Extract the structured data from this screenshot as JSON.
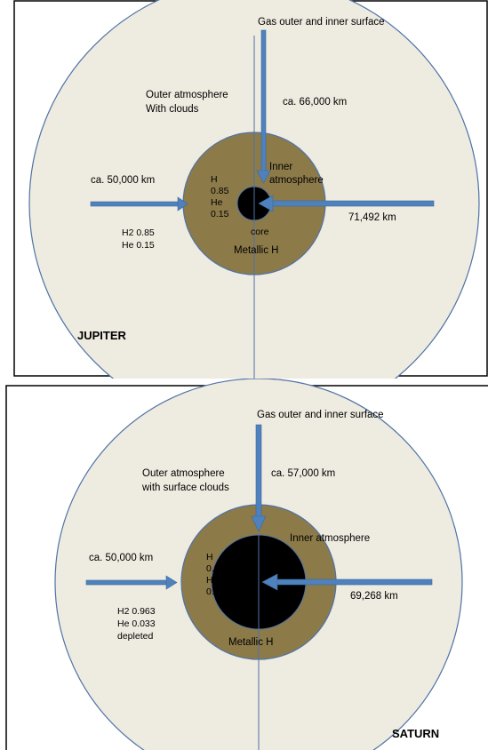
{
  "jupiter": {
    "title": "JUPITER",
    "top_label": "Gas outer and inner surface",
    "outer_label_line1": "Outer atmosphere",
    "outer_label_line2": "With clouds",
    "depth_top": "ca. 66,000 km",
    "depth_left": "ca. 50,000 km",
    "radius": "71,492 km",
    "inner_label_line1": "Inner",
    "inner_label_line2": "atmosphere",
    "metallic_label": "Metallic H",
    "core_label": "core",
    "inner_comp": [
      "H",
      "0.85",
      "He",
      "0.15"
    ],
    "outer_comp": [
      "H2  0.85",
      "He  0.15"
    ],
    "colors": {
      "outer": "#eeebe0",
      "mantle": "#8c7a49",
      "core": "#000000",
      "stroke": "#4f73a6",
      "arrow": "#4f81bd"
    }
  },
  "saturn": {
    "title": "SATURN",
    "top_label": "Gas outer and inner surface",
    "outer_label_line1": "Outer atmosphere",
    "outer_label_line2": "with surface clouds",
    "depth_top": "ca. 57,000 km",
    "depth_left": "ca. 50,000 km",
    "radius": "69,268 km",
    "inner_label": "Inner atmosphere",
    "metallic_label": "Metallic H",
    "inner_comp": [
      "H",
      "0.95",
      "He",
      "0.05"
    ],
    "outer_comp": [
      "H2  0.963",
      "He  0.033",
      "depleted"
    ],
    "colors": {
      "outer": "#eeebe0",
      "mantle": "#8c7a49",
      "core": "#000000",
      "stroke": "#4f73a6",
      "arrow": "#4f81bd"
    }
  }
}
